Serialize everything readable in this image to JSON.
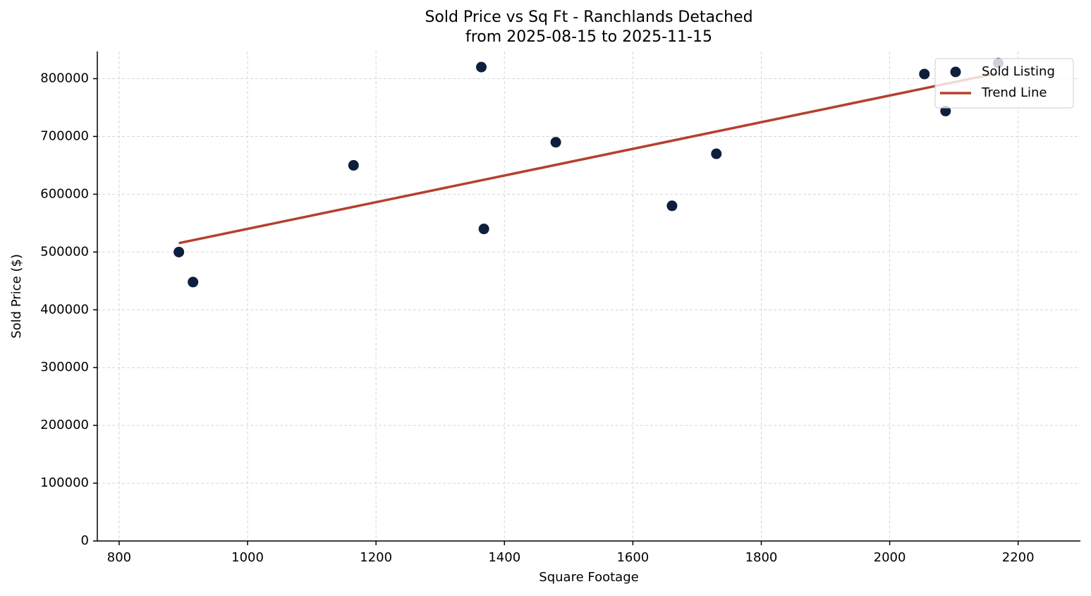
{
  "chart_data": {
    "type": "scatter",
    "title": "Sold Price vs Sq Ft - Ranchlands Detached",
    "subtitle": "from 2025-08-15 to 2025-11-15",
    "x_label": "Square Footage",
    "y_label": "Sold Price ($)",
    "xlim": [
      766,
      2297
    ],
    "ylim": [
      0,
      847000
    ],
    "xticks": [
      800,
      1000,
      1200,
      1400,
      1600,
      1800,
      2000,
      2200
    ],
    "yticks": [
      0,
      100000,
      200000,
      300000,
      400000,
      500000,
      600000,
      700000,
      800000
    ],
    "grid": true,
    "legend": "upper right",
    "series": [
      {
        "name": "Sold Listing",
        "type": "scatter",
        "color": "#0d1f3c",
        "x": [
          893,
          915,
          1165,
          1364,
          1368,
          1480,
          1661,
          1730,
          2054,
          2087,
          2169
        ],
        "values": [
          500000,
          448000,
          650000,
          820000,
          540000,
          690000,
          580000,
          670000,
          808000,
          744000,
          827000
        ]
      },
      {
        "name": "Trend Line",
        "type": "line",
        "color": "#b5402f",
        "x": [
          893,
          2169
        ],
        "values": [
          515400,
          809800
        ]
      }
    ]
  }
}
